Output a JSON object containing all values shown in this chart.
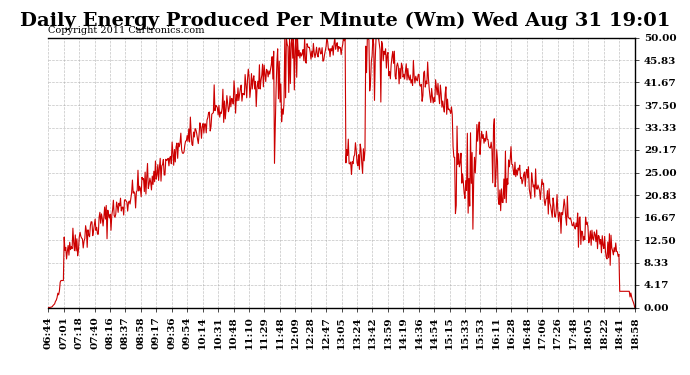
{
  "title": "Daily Energy Produced Per Minute (Wm) Wed Aug 31 19:01",
  "copyright": "Copyright 2011 Cartronics.com",
  "ylabel_right": true,
  "yticks": [
    0.0,
    4.17,
    8.33,
    12.5,
    16.67,
    20.83,
    25.0,
    29.17,
    33.33,
    37.5,
    41.67,
    45.83,
    50.0
  ],
  "ymin": 0.0,
  "ymax": 50.0,
  "line_color": "#cc0000",
  "background_color": "#ffffff",
  "grid_color": "#aaaaaa",
  "title_fontsize": 14,
  "copyright_fontsize": 7,
  "tick_fontsize": 7.5,
  "x_labels": [
    "06:44",
    "07:01",
    "07:18",
    "07:40",
    "08:16",
    "08:37",
    "08:58",
    "09:17",
    "09:36",
    "09:54",
    "10:14",
    "10:31",
    "10:48",
    "11:10",
    "11:29",
    "11:48",
    "12:09",
    "12:28",
    "12:47",
    "13:05",
    "13:24",
    "13:42",
    "13:59",
    "14:19",
    "14:36",
    "14:54",
    "15:15",
    "15:33",
    "15:53",
    "16:11",
    "16:28",
    "16:48",
    "17:06",
    "17:26",
    "17:48",
    "18:05",
    "18:22",
    "18:41",
    "18:58"
  ]
}
